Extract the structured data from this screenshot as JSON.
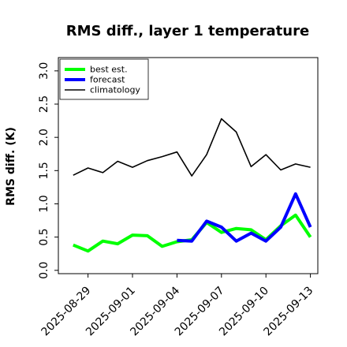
{
  "chart_data": {
    "type": "line",
    "title": "RMS diff., layer 1 temperature",
    "xlabel": "",
    "ylabel": "RMS diff. (K)",
    "ylim": [
      -0.05,
      3.2
    ],
    "yticks": [
      "0.0",
      "0.5",
      "1.0",
      "1.5",
      "2.0",
      "2.5",
      "3.0"
    ],
    "xlim": [
      "2025-08-27",
      "2025-09-13T12:00"
    ],
    "xticks": [
      "2025-08-29",
      "2025-09-01",
      "2025-09-04",
      "2025-09-07",
      "2025-09-10",
      "2025-09-13"
    ],
    "highlighted_xtick": "2025-09-04",
    "highlight_color": "#228B22",
    "grid": false,
    "legend_position": "top-left",
    "series": [
      {
        "name": "best est.",
        "color": "#00ff00",
        "x": [
          "2025-08-28",
          "2025-08-29",
          "2025-08-30",
          "2025-08-31",
          "2025-09-01",
          "2025-09-02",
          "2025-09-03",
          "2025-09-04",
          "2025-09-05",
          "2025-09-06",
          "2025-09-07",
          "2025-09-08",
          "2025-09-09",
          "2025-09-10",
          "2025-09-11",
          "2025-09-12",
          "2025-09-13"
        ],
        "values": [
          0.38,
          0.29,
          0.44,
          0.4,
          0.53,
          0.52,
          0.36,
          0.43,
          0.46,
          0.72,
          0.57,
          0.63,
          0.61,
          0.46,
          0.67,
          0.83,
          0.5
        ]
      },
      {
        "name": "forecast",
        "color": "#0000ff",
        "x": [
          "2025-09-04",
          "2025-09-05",
          "2025-09-06",
          "2025-09-07",
          "2025-09-08",
          "2025-09-09",
          "2025-09-10",
          "2025-09-11",
          "2025-09-12",
          "2025-09-13"
        ],
        "values": [
          0.45,
          0.44,
          0.74,
          0.65,
          0.44,
          0.56,
          0.44,
          0.65,
          1.15,
          0.65
        ]
      },
      {
        "name": "climatology",
        "color": "#000000",
        "x": [
          "2025-08-28",
          "2025-08-29",
          "2025-08-30",
          "2025-08-31",
          "2025-09-01",
          "2025-09-02",
          "2025-09-03",
          "2025-09-04",
          "2025-09-05",
          "2025-09-06",
          "2025-09-07",
          "2025-09-08",
          "2025-09-09",
          "2025-09-10",
          "2025-09-11",
          "2025-09-12",
          "2025-09-13"
        ],
        "values": [
          1.43,
          1.54,
          1.47,
          1.64,
          1.55,
          1.65,
          1.71,
          1.78,
          1.42,
          1.74,
          2.28,
          2.08,
          1.56,
          1.74,
          1.51,
          1.6,
          1.55
        ]
      }
    ]
  }
}
